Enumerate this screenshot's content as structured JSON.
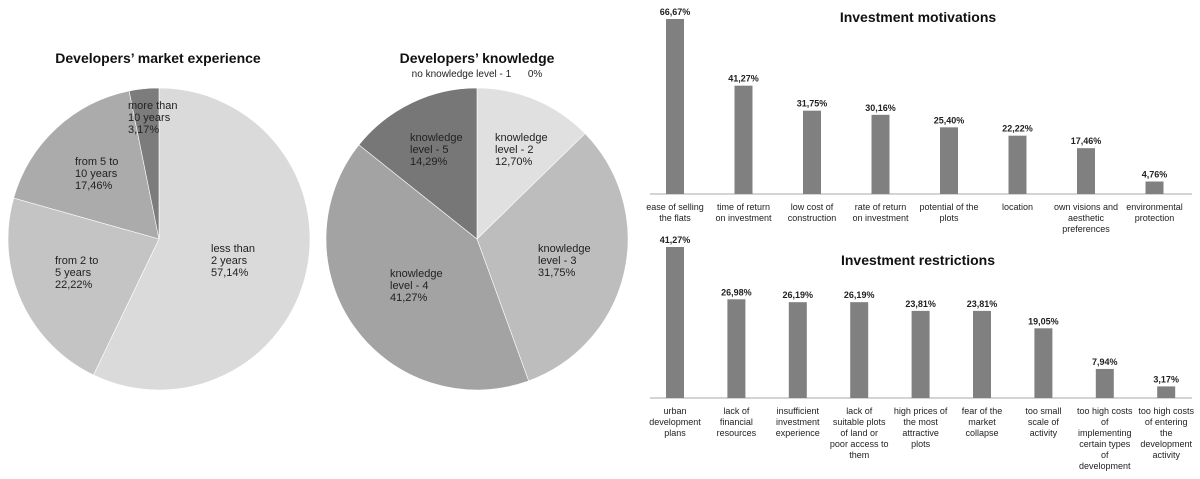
{
  "chart_data": [
    {
      "type": "pie",
      "title": "Developers’ market experience",
      "slices": [
        {
          "label": [
            "less than",
            "2 years"
          ],
          "value_text": "57,14%",
          "value": 57.14,
          "color": "#dadada"
        },
        {
          "label": [
            "from 2 to",
            "5 years"
          ],
          "value_text": "22,22%",
          "value": 22.22,
          "color": "#c4c4c4"
        },
        {
          "label": [
            "from 5 to",
            "10 years"
          ],
          "value_text": "17,46%",
          "value": 17.46,
          "color": "#ababab"
        },
        {
          "label": [
            "more than",
            "10 years"
          ],
          "value_text": "3,17%",
          "value": 3.17,
          "color": "#7c7c7c"
        }
      ]
    },
    {
      "type": "pie",
      "title": "Developers’ knowledge",
      "note": "no knowledge level - 1      0%",
      "slices": [
        {
          "label": [
            "knowledge",
            "level - 2"
          ],
          "value_text": "12,70%",
          "value": 12.7,
          "color": "#e0e0e0"
        },
        {
          "label": [
            "knowledge",
            "level - 3"
          ],
          "value_text": "31,75%",
          "value": 31.75,
          "color": "#bdbdbd"
        },
        {
          "label": [
            "knowledge",
            "level - 4"
          ],
          "value_text": "41,27%",
          "value": 41.27,
          "color": "#a3a3a3"
        },
        {
          "label": [
            "knowledge",
            "level - 5"
          ],
          "value_text": "14,29%",
          "value": 14.29,
          "color": "#777777"
        }
      ]
    },
    {
      "type": "bar",
      "title": "Investment motivations",
      "ylim": [
        0,
        66.67
      ],
      "bar_color": "#808080",
      "categories": [
        [
          "ease of selling",
          "the flats"
        ],
        [
          "time of return",
          "on investment"
        ],
        [
          "low cost of",
          "construction"
        ],
        [
          "rate of return",
          "on investment"
        ],
        [
          "potential of the",
          "plots"
        ],
        [
          "location"
        ],
        [
          "own visions and",
          "aesthetic",
          "preferences"
        ],
        [
          "environmental",
          "protection"
        ]
      ],
      "values": [
        66.67,
        41.27,
        31.75,
        30.16,
        25.4,
        22.22,
        17.46,
        4.76
      ],
      "value_labels": [
        "66,67%",
        "41,27%",
        "31,75%",
        "30,16%",
        "25,40%",
        "22,22%",
        "17,46%",
        "4,76%"
      ]
    },
    {
      "type": "bar",
      "title": "Investment restrictions",
      "ylim": [
        0,
        41.27
      ],
      "bar_color": "#808080",
      "categories": [
        [
          "urban",
          "development",
          "plans"
        ],
        [
          "lack of",
          "financial",
          "resources"
        ],
        [
          "insufficient",
          "investment",
          "experience"
        ],
        [
          "lack of",
          "suitable plots",
          "of land or",
          "poor access to",
          "them"
        ],
        [
          "high prices of",
          "the most",
          "attractive",
          "plots"
        ],
        [
          "fear of the",
          "market",
          "collapse"
        ],
        [
          "too small",
          "scale of",
          "activity"
        ],
        [
          "too high costs",
          "of",
          "implementing",
          "certain types",
          "of",
          "development"
        ],
        [
          "too high costs",
          "of entering",
          "the",
          "development",
          "activity"
        ]
      ],
      "values": [
        41.27,
        26.98,
        26.19,
        26.19,
        23.81,
        23.81,
        19.05,
        7.94,
        3.17
      ],
      "value_labels": [
        "41,27%",
        "26,98%",
        "26,19%",
        "26,19%",
        "23,81%",
        "23,81%",
        "19,05%",
        "7,94%",
        "3,17%"
      ]
    }
  ]
}
